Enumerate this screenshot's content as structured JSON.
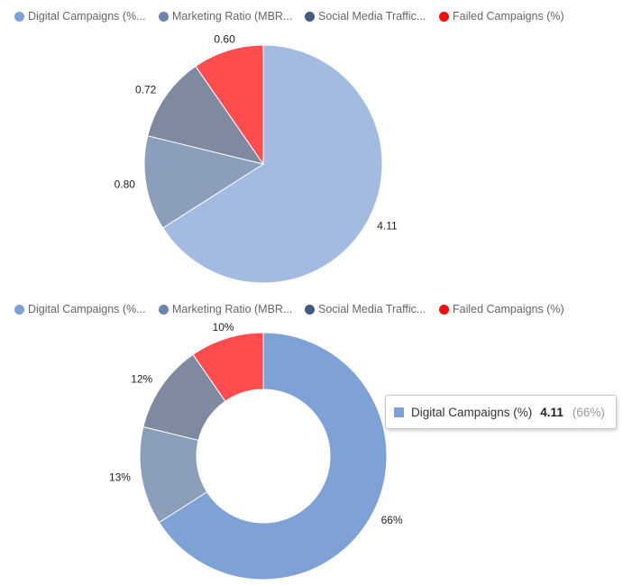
{
  "legend": {
    "items": [
      {
        "label": "Digital Campaigns (%...",
        "color": "#7ea1d6"
      },
      {
        "label": "Marketing Ratio (MBR...",
        "color": "#6b84ac"
      },
      {
        "label": "Social Media Traffic...",
        "color": "#46597e"
      },
      {
        "label": "Failed Campaigns (%)",
        "color": "#f20e0e"
      }
    ]
  },
  "tooltip": {
    "series_label": "Digital Campaigns (%)",
    "value": "4.11",
    "percent": "(66%)",
    "color": "#7ea1d6"
  },
  "chart_data": [
    {
      "type": "pie",
      "title": "",
      "categories": [
        "Digital Campaigns (%)",
        "Marketing Ratio (MBR)",
        "Social Media Traffic",
        "Failed Campaigns (%)"
      ],
      "values": [
        4.11,
        0.8,
        0.72,
        0.6
      ],
      "data_labels": [
        "4.11",
        "0.80",
        "0.72",
        "0.60"
      ],
      "slice_colors": [
        "#a3bbe1",
        "#8b9fbc",
        "#7f8aa0",
        "#ff4c4f"
      ],
      "legend_position": "top-left"
    },
    {
      "type": "pie",
      "subtype": "donut",
      "title": "",
      "categories": [
        "Digital Campaigns (%)",
        "Marketing Ratio (MBR)",
        "Social Media Traffic",
        "Failed Campaigns (%)"
      ],
      "values": [
        4.11,
        0.8,
        0.72,
        0.6
      ],
      "data_labels": [
        "66%",
        "13%",
        "12%",
        "10%"
      ],
      "slice_colors": [
        "#7ea1d6",
        "#8b9fbc",
        "#7f8aa0",
        "#ff4c4f"
      ],
      "highlighted_slice": "Digital Campaigns (%)",
      "legend_position": "top-left"
    }
  ]
}
